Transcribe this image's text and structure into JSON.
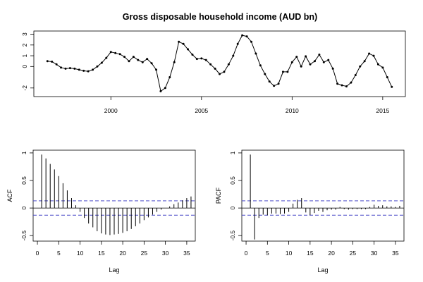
{
  "chart_data": [
    {
      "type": "line",
      "title": "Gross disposable household income (AUD bn)",
      "xlabel": "",
      "ylabel": "",
      "xlim": [
        1995.75,
        2016.25
      ],
      "ylim": [
        -2.8,
        3.3
      ],
      "x_ticks": [
        2000,
        2005,
        2010,
        2015
      ],
      "y_ticks": [
        -2,
        0,
        1,
        2,
        3
      ],
      "grid": false,
      "marker": "point",
      "series": [
        {
          "x": [
            1996.5,
            1996.75,
            1997.0,
            1997.25,
            1997.5,
            1997.75,
            1998.0,
            1998.25,
            1998.5,
            1998.75,
            1999.0,
            1999.25,
            1999.5,
            1999.75,
            2000.0,
            2000.25,
            2000.5,
            2000.75,
            2001.0,
            2001.25,
            2001.5,
            2001.75,
            2002.0,
            2002.25,
            2002.5,
            2002.75,
            2003.0,
            2003.25,
            2003.5,
            2003.75,
            2004.0,
            2004.25,
            2004.5,
            2004.75,
            2005.0,
            2005.25,
            2005.5,
            2005.75,
            2006.0,
            2006.25,
            2006.5,
            2006.75,
            2007.0,
            2007.25,
            2007.5,
            2007.75,
            2008.0,
            2008.25,
            2008.5,
            2008.75,
            2009.0,
            2009.25,
            2009.5,
            2009.75,
            2010.0,
            2010.25,
            2010.5,
            2010.75,
            2011.0,
            2011.25,
            2011.5,
            2011.75,
            2012.0,
            2012.25,
            2012.5,
            2012.75,
            2013.0,
            2013.25,
            2013.5,
            2013.75,
            2014.0,
            2014.25,
            2014.5,
            2014.75,
            2015.0,
            2015.25,
            2015.5
          ],
          "y": [
            0.5,
            0.45,
            0.2,
            -0.1,
            -0.2,
            -0.15,
            -0.2,
            -0.3,
            -0.4,
            -0.45,
            -0.3,
            0.0,
            0.35,
            0.8,
            1.35,
            1.25,
            1.15,
            0.9,
            0.5,
            0.9,
            0.6,
            0.4,
            0.7,
            0.3,
            -0.3,
            -2.3,
            -2.0,
            -1.0,
            0.4,
            2.3,
            2.1,
            1.6,
            1.1,
            0.7,
            0.75,
            0.6,
            0.2,
            -0.2,
            -0.7,
            -0.5,
            0.2,
            1.0,
            2.1,
            2.9,
            2.8,
            2.3,
            1.2,
            0.1,
            -0.7,
            -1.4,
            -1.8,
            -1.6,
            -0.5,
            -0.5,
            0.4,
            0.9,
            0.0,
            0.95,
            0.2,
            0.5,
            1.1,
            0.4,
            0.6,
            -0.2,
            -1.6,
            -1.75,
            -1.85,
            -1.5,
            -0.8,
            0.0,
            0.5,
            1.2,
            1.0,
            0.2,
            -0.1,
            -1.0,
            -1.9
          ]
        }
      ]
    },
    {
      "type": "bar",
      "subtype": "acf",
      "title": "",
      "xlabel": "Lag",
      "ylabel": "ACF",
      "xlim": [
        -1,
        37
      ],
      "ylim": [
        -0.6,
        1.05
      ],
      "x_ticks": [
        0,
        5,
        10,
        15,
        20,
        25,
        30,
        35
      ],
      "y_ticks": [
        -0.5,
        0.0,
        0.5,
        1.0
      ],
      "confidence_band": 0.13,
      "lags": [
        1,
        2,
        3,
        4,
        5,
        6,
        7,
        8,
        9,
        10,
        11,
        12,
        13,
        14,
        15,
        16,
        17,
        18,
        19,
        20,
        21,
        22,
        23,
        24,
        25,
        26,
        27,
        28,
        29,
        30,
        31,
        32,
        33,
        34,
        35,
        36
      ],
      "values": [
        0.97,
        0.9,
        0.8,
        0.7,
        0.58,
        0.45,
        0.32,
        0.18,
        0.05,
        -0.07,
        -0.18,
        -0.28,
        -0.35,
        -0.42,
        -0.46,
        -0.48,
        -0.49,
        -0.48,
        -0.47,
        -0.45,
        -0.42,
        -0.38,
        -0.33,
        -0.28,
        -0.22,
        -0.17,
        -0.12,
        -0.07,
        -0.03,
        0.0,
        0.03,
        0.07,
        0.1,
        0.14,
        0.18,
        0.21
      ]
    },
    {
      "type": "bar",
      "subtype": "pacf",
      "title": "",
      "xlabel": "Lag",
      "ylabel": "PACF",
      "xlim": [
        -1,
        37
      ],
      "ylim": [
        -0.6,
        1.05
      ],
      "x_ticks": [
        0,
        5,
        10,
        15,
        20,
        25,
        30,
        35
      ],
      "y_ticks": [
        -0.5,
        0.0,
        0.5,
        1.0
      ],
      "confidence_band": 0.13,
      "lags": [
        1,
        2,
        3,
        4,
        5,
        6,
        7,
        8,
        9,
        10,
        11,
        12,
        13,
        14,
        15,
        16,
        17,
        18,
        19,
        20,
        21,
        22,
        23,
        24,
        25,
        26,
        27,
        28,
        29,
        30,
        31,
        32,
        33,
        34,
        35,
        36
      ],
      "values": [
        0.97,
        -0.57,
        -0.18,
        -0.12,
        -0.13,
        -0.1,
        -0.1,
        -0.11,
        -0.1,
        -0.07,
        0.08,
        0.15,
        0.18,
        -0.08,
        -0.13,
        -0.09,
        -0.05,
        -0.07,
        -0.04,
        -0.03,
        -0.03,
        0.02,
        -0.02,
        -0.03,
        -0.02,
        -0.02,
        -0.02,
        -0.02,
        0.02,
        0.06,
        0.04,
        0.05,
        0.03,
        0.03,
        0.02,
        0.04
      ]
    }
  ],
  "colors": {
    "axis": "#000000",
    "confidence_line": "#4b4bc8"
  }
}
